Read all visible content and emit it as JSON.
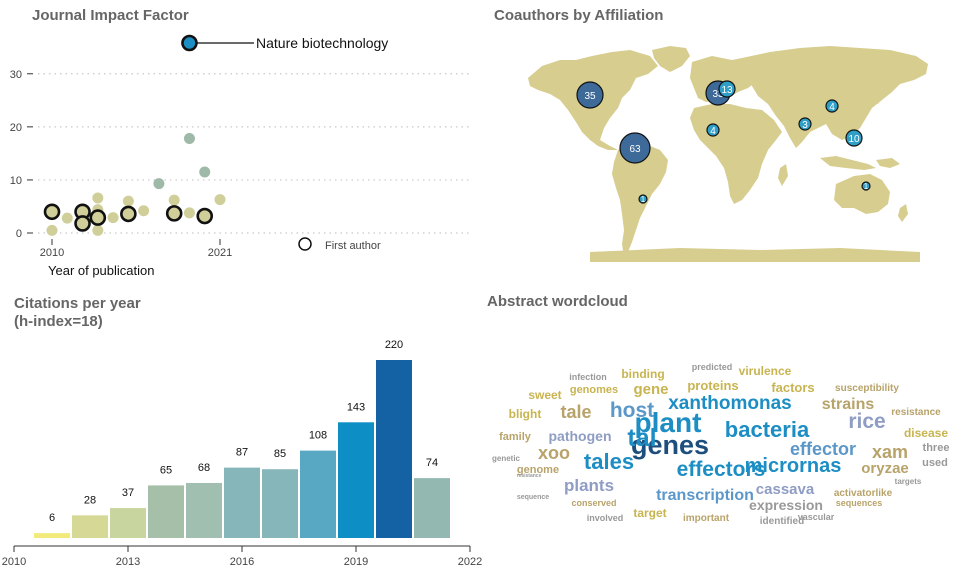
{
  "panels": {
    "jif": {
      "title": "Journal Impact Factor"
    },
    "coauthors": {
      "title": "Coauthors by Affiliation"
    },
    "citations": {
      "title_line1": "Citations per year",
      "title_line2": "(h-index=18)"
    },
    "wordcloud": {
      "title": "Abstract wordcloud"
    }
  },
  "chart_data": [
    {
      "type": "scatter",
      "title": "Journal Impact Factor",
      "xlabel": "Year of publication",
      "ylabel": "",
      "x_ticks": [
        2010,
        2021
      ],
      "y_ticks": [
        0,
        10,
        20,
        30
      ],
      "xlim": [
        2009.5,
        2021.8
      ],
      "ylim": [
        -0.5,
        36.5
      ],
      "grid": "horizontal dotted",
      "annotation": {
        "label": "Nature biotechnology",
        "x": 2018.9,
        "y": 35.8
      },
      "legend": {
        "label": "First author",
        "position": "bottom-right"
      },
      "colors": {
        "points": "#d0cf9a",
        "points_muted": "#9fb9a8",
        "first_author_ring": "#111111",
        "highlight": "#1c8ec4"
      },
      "points": [
        {
          "x": 2010.0,
          "y": 4.0,
          "first_author": true
        },
        {
          "x": 2010.0,
          "y": 0.5,
          "first_author": false
        },
        {
          "x": 2011.0,
          "y": 2.8,
          "first_author": false
        },
        {
          "x": 2012.0,
          "y": 4.0,
          "first_author": true
        },
        {
          "x": 2012.0,
          "y": 1.8,
          "first_author": true
        },
        {
          "x": 2013.0,
          "y": 2.9,
          "first_author": true
        },
        {
          "x": 2013.0,
          "y": 6.6,
          "first_author": false
        },
        {
          "x": 2013.0,
          "y": 4.4,
          "first_author": false
        },
        {
          "x": 2013.0,
          "y": 0.5,
          "first_author": false
        },
        {
          "x": 2014.0,
          "y": 2.9,
          "first_author": false
        },
        {
          "x": 2015.0,
          "y": 3.6,
          "first_author": true
        },
        {
          "x": 2015.0,
          "y": 6.0,
          "first_author": false
        },
        {
          "x": 2016.0,
          "y": 4.2,
          "first_author": false
        },
        {
          "x": 2017.0,
          "y": 9.3,
          "first_author": false,
          "muted": true
        },
        {
          "x": 2018.0,
          "y": 3.7,
          "first_author": true
        },
        {
          "x": 2018.0,
          "y": 6.2,
          "first_author": false
        },
        {
          "x": 2019.0,
          "y": 17.8,
          "first_author": false,
          "muted": true
        },
        {
          "x": 2019.0,
          "y": 3.8,
          "first_author": false
        },
        {
          "x": 2019.0,
          "y": 35.8,
          "first_author": true,
          "highlight": true
        },
        {
          "x": 2020.0,
          "y": 11.5,
          "first_author": false,
          "muted": true
        },
        {
          "x": 2020.0,
          "y": 3.2,
          "first_author": true
        },
        {
          "x": 2021.0,
          "y": 6.3,
          "first_author": false
        }
      ]
    },
    {
      "type": "bar",
      "title": "Citations per year",
      "subtitle": "(h-index=18)",
      "xlabel": "",
      "ylabel": "",
      "categories": [
        2011,
        2012,
        2013,
        2014,
        2015,
        2016,
        2017,
        2018,
        2019,
        2020,
        2021
      ],
      "values": [
        6,
        28,
        37,
        65,
        68,
        87,
        85,
        108,
        143,
        220,
        74
      ],
      "colors": [
        "#f3ea7c",
        "#d6d996",
        "#c8d59e",
        "#a5bfa8",
        "#a0bfb0",
        "#86b5ba",
        "#86b5ba",
        "#58a7c3",
        "#0d8ec5",
        "#1462a3",
        "#92b8b1"
      ],
      "x_ticks": [
        2010,
        2013,
        2016,
        2019,
        2022
      ],
      "xlim": [
        2010,
        2022
      ],
      "ylim": [
        0,
        240
      ]
    },
    {
      "type": "map",
      "title": "Coauthors by Affiliation",
      "land_color": "#d6cd8f",
      "bubble_colors": {
        "light": "#2f9fc8",
        "dark": "#3d6a99"
      },
      "bubbles": [
        {
          "value": 35,
          "region": "North America (USA)",
          "dark": true
        },
        {
          "value": 63,
          "region": "South America (Colombia)",
          "dark": true
        },
        {
          "value": 1,
          "region": "South America (Argentina)",
          "dark": false
        },
        {
          "value": 33,
          "region": "Europe (France)",
          "dark": true
        },
        {
          "value": 13,
          "region": "Europe (Germany)",
          "dark": false
        },
        {
          "value": 4,
          "region": "North Africa",
          "dark": false
        },
        {
          "value": 3,
          "region": "South Asia (India)",
          "dark": false
        },
        {
          "value": 4,
          "region": "East Asia (China)",
          "dark": false
        },
        {
          "value": 10,
          "region": "Southeast Asia (Philippines)",
          "dark": false
        },
        {
          "value": 1,
          "region": "Australia",
          "dark": false
        }
      ]
    },
    {
      "type": "wordcloud",
      "title": "Abstract wordcloud",
      "words": [
        {
          "text": "plant",
          "weight": 28,
          "color": "#1c8ec4"
        },
        {
          "text": "genes",
          "weight": 27,
          "color": "#1d4e7e"
        },
        {
          "text": "tal",
          "weight": 25,
          "color": "#1c8ec4"
        },
        {
          "text": "bacteria",
          "weight": 22,
          "color": "#1c8ec4"
        },
        {
          "text": "tales",
          "weight": 22,
          "color": "#1c8ec4"
        },
        {
          "text": "rice",
          "weight": 21,
          "color": "#8f9dc4"
        },
        {
          "text": "host",
          "weight": 21,
          "color": "#5b97c9"
        },
        {
          "text": "effectors",
          "weight": 21,
          "color": "#1c8ec4"
        },
        {
          "text": "micrornas",
          "weight": 20,
          "color": "#1c8ec4"
        },
        {
          "text": "xanthomonas",
          "weight": 19,
          "color": "#1c8ec4"
        },
        {
          "text": "effector",
          "weight": 18,
          "color": "#5b97c9"
        },
        {
          "text": "xam",
          "weight": 18,
          "color": "#b8a36a"
        },
        {
          "text": "tale",
          "weight": 18,
          "color": "#b8a36a"
        },
        {
          "text": "xoo",
          "weight": 18,
          "color": "#b8a36a"
        },
        {
          "text": "plants",
          "weight": 17,
          "color": "#8f9dc4"
        },
        {
          "text": "transcription",
          "weight": 16,
          "color": "#5b97c9"
        },
        {
          "text": "strains",
          "weight": 16,
          "color": "#b8a36a"
        },
        {
          "text": "oryzae",
          "weight": 15,
          "color": "#b8a36a"
        },
        {
          "text": "cassava",
          "weight": 15,
          "color": "#8f9dc4"
        },
        {
          "text": "gene",
          "weight": 15,
          "color": "#c8b450"
        },
        {
          "text": "pathogen",
          "weight": 14,
          "color": "#8f9dc4"
        },
        {
          "text": "expression",
          "weight": 14,
          "color": "#999999"
        },
        {
          "text": "proteins",
          "weight": 13,
          "color": "#c8b450"
        },
        {
          "text": "factors",
          "weight": 13,
          "color": "#c8b450"
        },
        {
          "text": "binding",
          "weight": 12,
          "color": "#c8b450"
        },
        {
          "text": "disease",
          "weight": 12,
          "color": "#c8b450"
        },
        {
          "text": "virulence",
          "weight": 12,
          "color": "#c8b450"
        },
        {
          "text": "target",
          "weight": 12,
          "color": "#c8b450"
        },
        {
          "text": "sweet",
          "weight": 12,
          "color": "#c8b450"
        },
        {
          "text": "blight",
          "weight": 12,
          "color": "#c8b450"
        },
        {
          "text": "genomes",
          "weight": 11,
          "color": "#c8b450"
        },
        {
          "text": "family",
          "weight": 11,
          "color": "#b8a36a"
        },
        {
          "text": "three",
          "weight": 11,
          "color": "#999999"
        },
        {
          "text": "used",
          "weight": 11,
          "color": "#999999"
        },
        {
          "text": "genome",
          "weight": 11,
          "color": "#b8a36a"
        },
        {
          "text": "activatorlike",
          "weight": 10,
          "color": "#b8a36a"
        },
        {
          "text": "important",
          "weight": 10,
          "color": "#b8a36a"
        },
        {
          "text": "susceptibility",
          "weight": 10,
          "color": "#b8a36a"
        },
        {
          "text": "resistance",
          "weight": 10,
          "color": "#b8a36a"
        },
        {
          "text": "identified",
          "weight": 10,
          "color": "#999999"
        },
        {
          "text": "conserved",
          "weight": 9,
          "color": "#b8a36a"
        },
        {
          "text": "involved",
          "weight": 9,
          "color": "#999999"
        },
        {
          "text": "sequences",
          "weight": 9,
          "color": "#b8a36a"
        },
        {
          "text": "vascular",
          "weight": 9,
          "color": "#999999"
        },
        {
          "text": "predicted",
          "weight": 9,
          "color": "#999999"
        },
        {
          "text": "infection",
          "weight": 9,
          "color": "#999999"
        },
        {
          "text": "targets",
          "weight": 8,
          "color": "#999999"
        },
        {
          "text": "genetic",
          "weight": 8,
          "color": "#999999"
        },
        {
          "text": "sequence",
          "weight": 7,
          "color": "#999999"
        },
        {
          "text": "resistance",
          "weight": 5,
          "color": "#999999"
        }
      ]
    }
  ]
}
